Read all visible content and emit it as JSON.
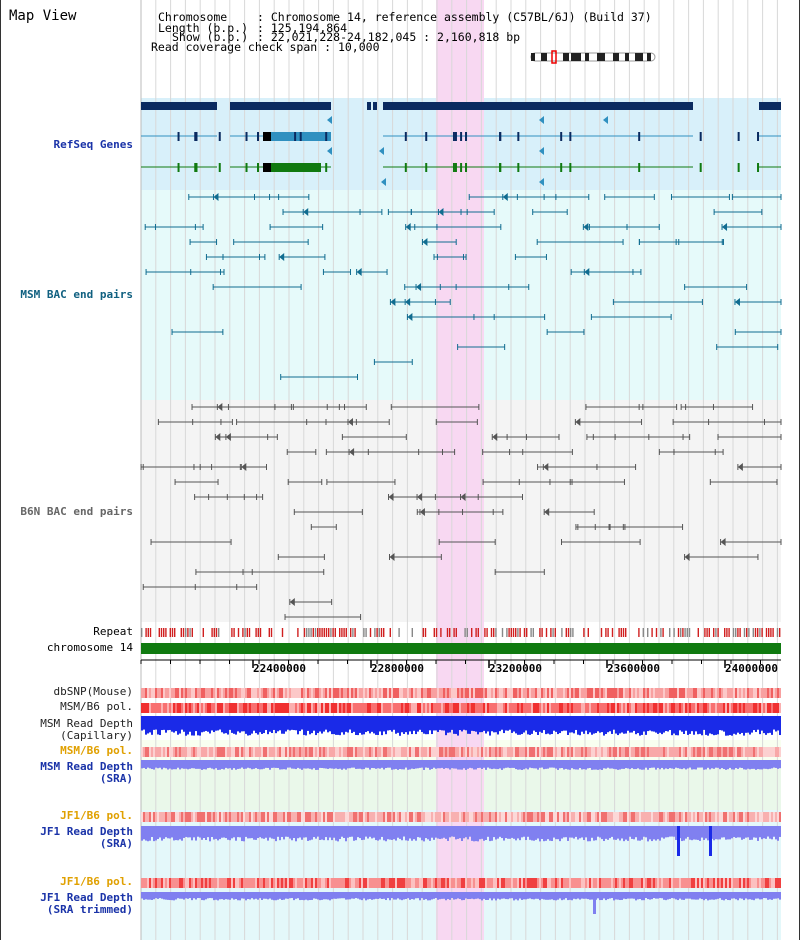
{
  "title": "Map View",
  "info": {
    "chromosome_label": "Chromosome",
    "chromosome_value": "Chromosome 14, reference assembly (C57BL/6J) (Build 37)",
    "length_label": "Length (b.p.)",
    "length_value": "125,194,864",
    "show_label": "Show (b.p.)",
    "show_value": "22,021,228-24,182,045 : 2,160,818 bp",
    "span_label": "Read coverage check span",
    "span_value": "10,000"
  },
  "tracks": {
    "refseq": "RefSeq Genes",
    "msm_bac": "MSM BAC end pairs",
    "b6n_bac": "B6N BAC end pairs",
    "repeat": "Repeat",
    "chromosome": "chromosome 14",
    "dbsnp": "dbSNP(Mouse)",
    "msm_b6_pol": "MSM/B6 pol.",
    "msm_depth_cap_1": "MSM Read Depth",
    "msm_depth_cap_2": "(Capillary)",
    "msm_b6_pol_sra": "MSM/B6 pol.",
    "msm_depth_sra_1": "MSM Read Depth",
    "msm_depth_sra_2": "(SRA)",
    "jf1_b6_pol": "JF1/B6 pol.",
    "jf1_depth_1": "JF1 Read Depth",
    "jf1_depth_2": "(SRA)",
    "jf1_b6_pol_trim": "JF1/B6 pol.",
    "jf1_trim_1": "JF1 Read Depth",
    "jf1_trim_2": "(SRA trimmed)"
  },
  "axis": {
    "ticks": [
      "22400000",
      "22800000",
      "23200000",
      "23600000",
      "24000000"
    ]
  },
  "colors": {
    "refseq_bg": "#d8f0fa",
    "msm_bg": "#e6fafa",
    "b6n_bg": "#f4f4f4",
    "highlight": "#f8d8f2",
    "gene_dark": "#0a2a60",
    "gene_mid": "#3090c0",
    "gene_green": "#107a10",
    "msm_pair": "#106c90",
    "b6n_pair": "#555555",
    "repeat_red": "#d02020",
    "chrom_green": "#107a10",
    "snp_pink": "#f08080",
    "depth_blue": "#1a2ae8",
    "depth_light": "#8080f0"
  }
}
